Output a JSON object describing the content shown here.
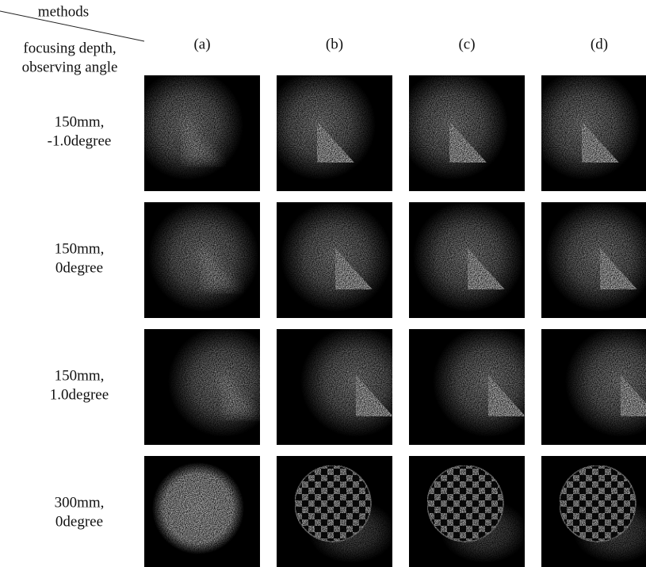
{
  "header": {
    "top": "methods",
    "bottom": [
      "focusing depth,",
      "observing angle"
    ]
  },
  "columns": [
    "(a)",
    "(b)",
    "(c)",
    "(d)"
  ],
  "rows": [
    {
      "lines": [
        "150mm,",
        "-1.0degree"
      ]
    },
    {
      "lines": [
        "150mm,",
        "0degree"
      ]
    },
    {
      "lines": [
        "150mm,",
        "1.0degree"
      ]
    },
    {
      "lines": [
        "300mm,",
        "0degree"
      ]
    }
  ]
}
